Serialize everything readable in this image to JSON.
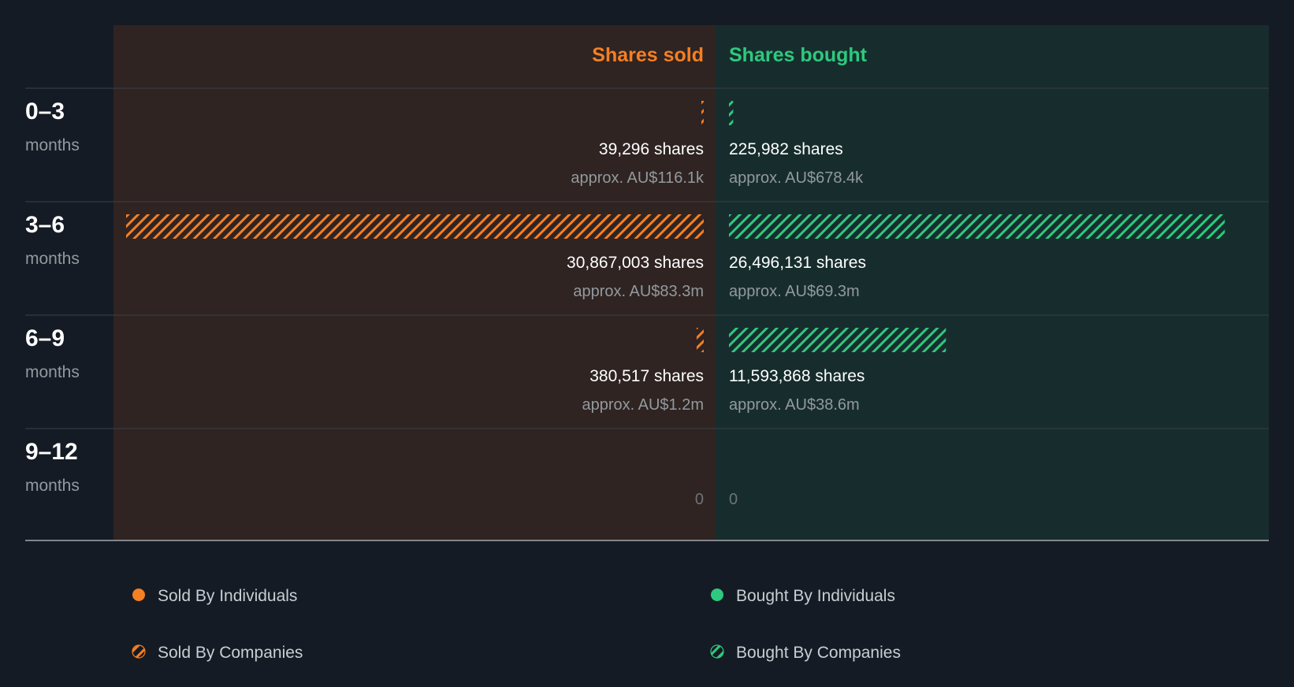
{
  "colors": {
    "background": "#151b24",
    "sold_panel": "#2f2422",
    "bought_panel": "#172d2d",
    "sold": "#f57f23",
    "bought": "#2dc97e",
    "value_text": "#ffffff",
    "muted_text": "#93999e",
    "zero_text": "#6d7479",
    "divider": "#3a4045",
    "baseline": "#a3a8ad"
  },
  "chart_data": {
    "type": "bar",
    "orientation": "horizontal-diverging",
    "columns": {
      "sold_title": "Shares sold",
      "bought_title": "Shares bought"
    },
    "categories": [
      {
        "range": "0–3",
        "unit": "months"
      },
      {
        "range": "3–6",
        "unit": "months"
      },
      {
        "range": "6–9",
        "unit": "months"
      },
      {
        "range": "9–12",
        "unit": "months"
      }
    ],
    "sold": {
      "shares": [
        39296,
        30867003,
        380517,
        0
      ],
      "shares_label": [
        "39,296 shares",
        "30,867,003 shares",
        "380,517 shares",
        "0"
      ],
      "approx_label": [
        "approx. AU$116.1k",
        "approx. AU$83.3m",
        "approx. AU$1.2m",
        ""
      ]
    },
    "bought": {
      "shares": [
        225982,
        26496131,
        11593868,
        0
      ],
      "shares_label": [
        "225,982 shares",
        "26,496,131 shares",
        "11,593,868 shares",
        "0"
      ],
      "approx_label": [
        "approx. AU$678.4k",
        "approx. AU$69.3m",
        "approx. AU$38.6m",
        ""
      ]
    },
    "legend": [
      {
        "label": "Sold By Individuals",
        "color": "#f57f23",
        "pattern": "solid"
      },
      {
        "label": "Bought By Individuals",
        "color": "#2dc97e",
        "pattern": "solid"
      },
      {
        "label": "Sold By Companies",
        "color": "#f57f23",
        "pattern": "hatched"
      },
      {
        "label": "Bought By Companies",
        "color": "#2dc97e",
        "pattern": "hatched"
      }
    ],
    "bar_pattern": "hatched",
    "grid": false,
    "legend_position": "bottom"
  }
}
